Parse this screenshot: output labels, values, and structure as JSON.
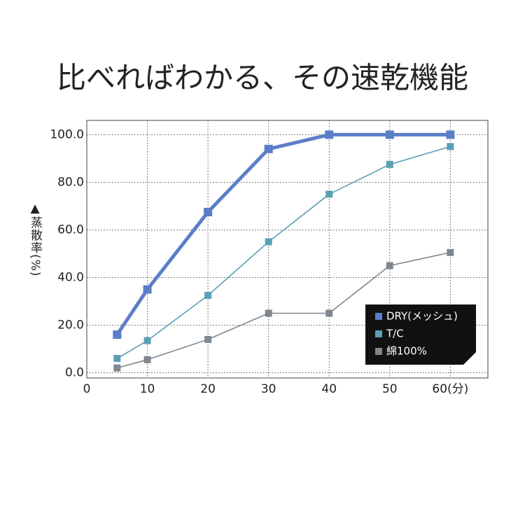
{
  "chart_data": {
    "type": "line",
    "title": "比べればわかる、その速乾機能",
    "ylabel": "▲蒸散率(%)",
    "x": [
      5,
      10,
      20,
      30,
      40,
      50,
      60
    ],
    "series": [
      {
        "name": "DRY(メッシュ)",
        "color": "#5b7ec9",
        "values": [
          16,
          35,
          67.5,
          94,
          100,
          100,
          100
        ]
      },
      {
        "name": "T/C",
        "color": "#5aa0b4",
        "values": [
          6,
          13.5,
          32.5,
          55,
          75,
          87.5,
          95
        ]
      },
      {
        "name": "綿100%",
        "color": "#7f8790",
        "values": [
          2,
          5.5,
          14,
          25,
          25,
          45,
          50.5
        ]
      }
    ],
    "xlim": [
      0,
      66.2
    ],
    "ylim": [
      -2.2,
      106
    ],
    "xticks": [
      0,
      10,
      20,
      30,
      40,
      50,
      {
        "value": 60,
        "label": "60(分)"
      }
    ],
    "yticks": [
      {
        "value": 0,
        "label": "0.0"
      },
      {
        "value": 20,
        "label": "20.0"
      },
      {
        "value": 40,
        "label": "40.0"
      },
      {
        "value": 60,
        "label": "60.0"
      },
      {
        "value": 80,
        "label": "80.0"
      },
      {
        "value": 100,
        "label": "100.0"
      }
    ],
    "grid": true,
    "legend": "lower right"
  }
}
